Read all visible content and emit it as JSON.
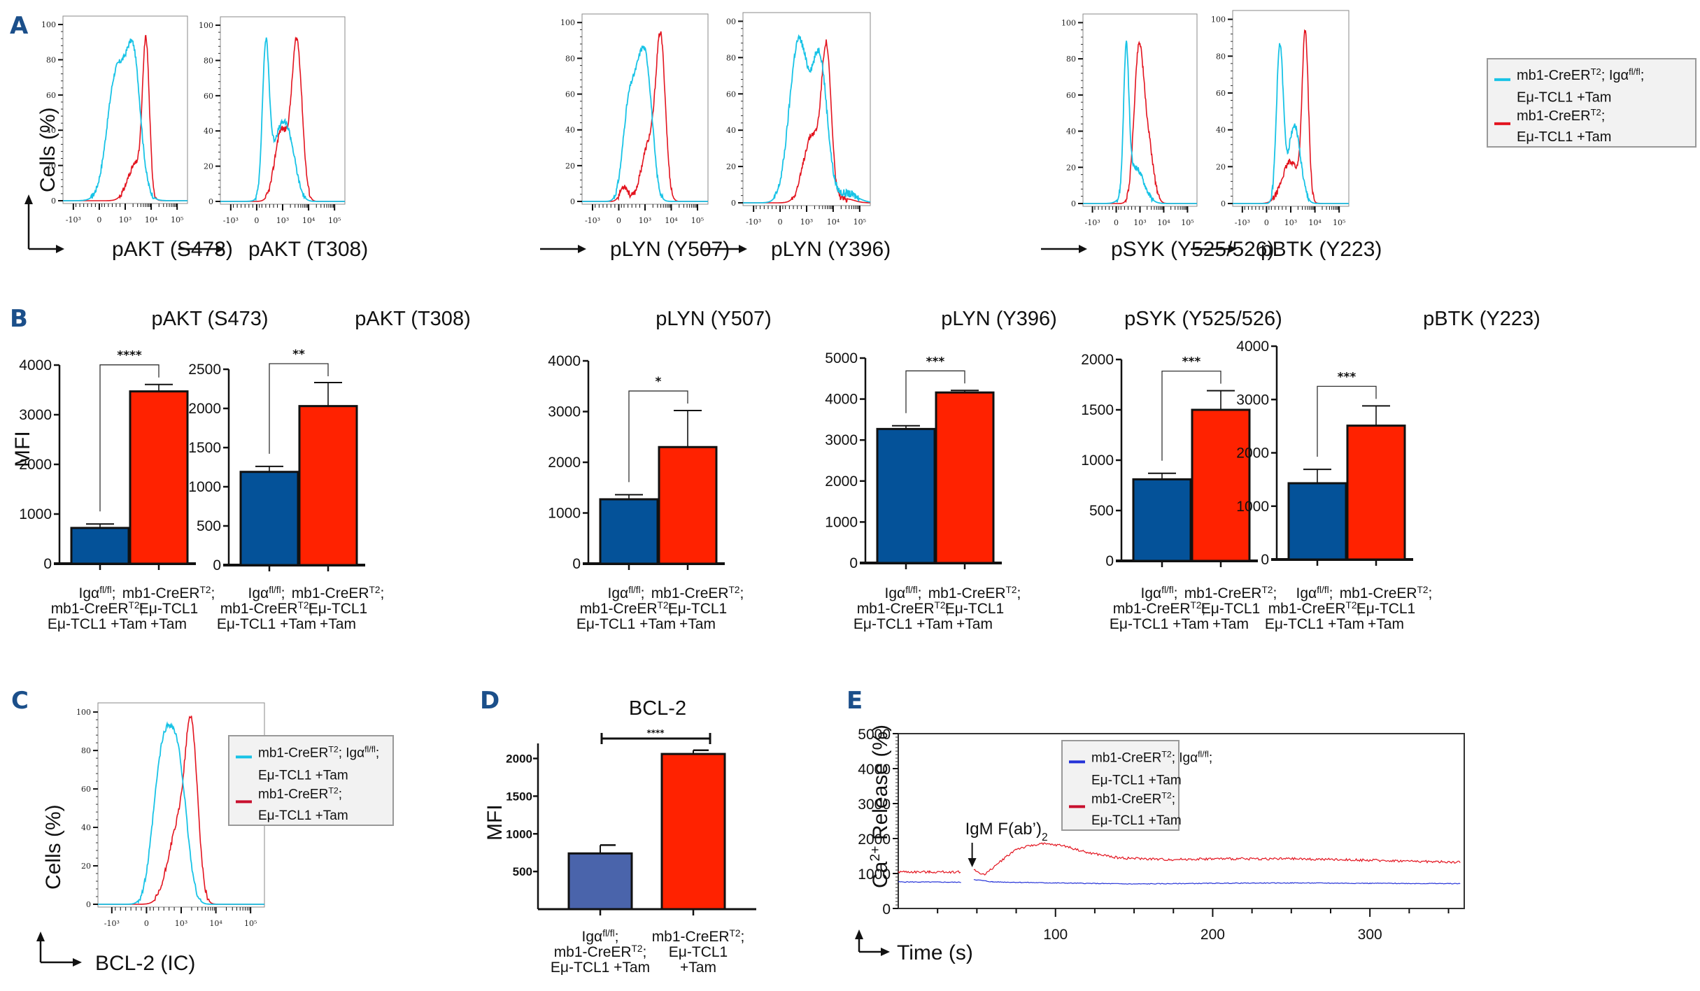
{
  "colors": {
    "panel_letter": "#1b4f8a",
    "cyan": "#18c3e6",
    "red_line": "#e3141f",
    "bar_blue": "#045299",
    "bar_red": "#ff2200",
    "bar_blue_d": "#4a64ab",
    "line_blue": "#2432d8",
    "legend_bg": "#f2f2f2"
  },
  "legend": {
    "series1_line1": "mb1-CreER",
    "series1_sup1": "T2",
    "series1_mid": "; Igα",
    "series1_sup2": "fl/fl",
    "series1_end": ";",
    "series1_line2": "Eμ-TCL1 +Tam",
    "series2_line1": "mb1-CreER",
    "series2_sup": "T2",
    "series2_end": ";",
    "series2_line2": "Eμ-TCL1 +Tam"
  },
  "categories": {
    "cat1_line1_a": "Igα",
    "cat1_line1_sup": "fl/fl",
    "cat1_line1_b": ";",
    "cat1_line2_a": "mb1-CreER",
    "cat1_line2_sup": "T2",
    "cat1_line2_b": ";",
    "cat1_line3": "Eμ-TCL1 +Tam",
    "cat2_line1_a": "mb1-CreER",
    "cat2_line1_sup": "T2",
    "cat2_line1_b": ";",
    "cat2_line2": "Eμ-TCL1",
    "cat2_line3": "+Tam"
  },
  "chart_data": [
    {
      "panel": "A",
      "type": "line",
      "subtype": "flow-cytometry-histograms",
      "ylabel": "Cells (%)",
      "ylim": [
        0,
        100
      ],
      "yticks": [
        "0",
        "20",
        "40",
        "60",
        "80",
        "100"
      ],
      "xticks": [
        "-10³",
        "0",
        "10³",
        "10⁴",
        "10⁵"
      ],
      "legend_position": "right",
      "series_names": [
        "mb1-CreERT2; Igαfl/fl; Eμ-TCL1 +Tam",
        "mb1-CreERT2; Eμ-TCL1 +Tam"
      ],
      "plots": [
        {
          "xlabel": "pAKT (S473)",
          "cyan_peak": {
            "x": "~3×10³",
            "y": 92
          },
          "red_peak": {
            "x": "~7×10³",
            "y": 94
          }
        },
        {
          "xlabel": "pAKT (T308)",
          "cyan_peak": {
            "x": "~3×10²",
            "y": 93
          },
          "red_peak": {
            "x": "~3×10³",
            "y": 93
          }
        },
        {
          "xlabel": "pLYN (Y507)",
          "cyan_peak": {
            "x": "~10³",
            "y": 87
          },
          "red_peak": {
            "x": "~4×10³",
            "y": 95
          }
        },
        {
          "xlabel": "pLYN (Y396)",
          "cyan_peak": {
            "x": "~4×10³",
            "y": 92
          },
          "red_peak": {
            "x": "~6×10³",
            "y": 90
          },
          "yticks_visible": [
            "0",
            "20",
            "40",
            "60",
            "80",
            "00"
          ]
        },
        {
          "xlabel": "pSYK (Y525/526)",
          "cyan_peak": {
            "x": "~5×10²",
            "y": 90
          },
          "red_peak": {
            "x": "~10³",
            "y": 89
          }
        },
        {
          "xlabel": "pBTK (Y223)",
          "cyan_peak": {
            "x": "~6×10²",
            "y": 87
          },
          "red_peak": {
            "x": "~3×10³",
            "y": 94
          }
        }
      ]
    },
    {
      "panel": "B",
      "type": "bar",
      "ylabel": "MFI",
      "categories": [
        "Igαfl/fl; mb1-CreERT2; Eμ-TCL1 +Tam",
        "mb1-CreERT2; Eμ-TCL1 +Tam"
      ],
      "plots": [
        {
          "title": "pAKT (S473)",
          "ylim": [
            0,
            4000
          ],
          "yticks": [
            0,
            1000,
            2000,
            3000,
            4000
          ],
          "values": [
            720,
            3470
          ],
          "errors": [
            80,
            140
          ],
          "significance": "****"
        },
        {
          "title": "pAKT (T308)",
          "ylim": [
            0,
            2500
          ],
          "yticks": [
            0,
            500,
            1000,
            1500,
            2000,
            2500
          ],
          "values": [
            1190,
            2030
          ],
          "errors": [
            70,
            300
          ],
          "significance": "**"
        },
        {
          "title": "pLYN (Y507)",
          "ylim": [
            0,
            4000
          ],
          "yticks": [
            0,
            1000,
            2000,
            3000,
            4000
          ],
          "values": [
            1270,
            2300
          ],
          "errors": [
            90,
            720
          ],
          "significance": "*"
        },
        {
          "title": "pLYN (Y396)",
          "ylim": [
            0,
            5000
          ],
          "yticks": [
            0,
            1000,
            2000,
            3000,
            4000,
            5000
          ],
          "values": [
            3270,
            4160
          ],
          "errors": [
            80,
            50
          ],
          "significance": "***"
        },
        {
          "title": "pSYK (Y525/526)",
          "ylim": [
            0,
            2000
          ],
          "yticks": [
            0,
            500,
            1000,
            1500,
            2000
          ],
          "values": [
            810,
            1500
          ],
          "errors": [
            60,
            190
          ],
          "significance": "***"
        },
        {
          "title": "pBTK (Y223)",
          "ylim": [
            0,
            4000
          ],
          "yticks": [
            0,
            1000,
            2000,
            3000,
            4000
          ],
          "values": [
            1430,
            2510
          ],
          "errors": [
            260,
            370
          ],
          "significance": "***"
        }
      ]
    },
    {
      "panel": "C",
      "type": "line",
      "subtype": "flow-cytometry-histogram",
      "xlabel": "BCL-2 (IC)",
      "ylabel": "Cells (%)",
      "ylim": [
        0,
        100
      ],
      "yticks": [
        "0",
        "20",
        "40",
        "60",
        "80",
        "100"
      ],
      "xticks": [
        "-10³",
        "0",
        "10³",
        "10⁴",
        "10⁵"
      ],
      "cyan_peak": {
        "x": "~6×10²",
        "y": 94
      },
      "red_peak": {
        "x": "~1.5×10³",
        "y": 98
      },
      "legend_position": "right"
    },
    {
      "panel": "D",
      "type": "bar",
      "title": "BCL-2",
      "ylabel": "MFI",
      "yticks": [
        500,
        1000,
        1500,
        2000
      ],
      "ylim": [
        0,
        2200
      ],
      "values": [
        740,
        2060
      ],
      "errors": [
        110,
        50
      ],
      "significance": "****"
    },
    {
      "panel": "E",
      "type": "line",
      "xlabel": "Time (s)",
      "ylabel": "Ca²⁺ Release (%)",
      "xlim": [
        0,
        360
      ],
      "ylim": [
        0,
        5000
      ],
      "xticks": [
        100,
        200,
        300
      ],
      "yticks": [
        0,
        1000,
        2000,
        3000,
        4000,
        5000
      ],
      "annotation": {
        "text": "IgM F(ab’)",
        "subscript": "2",
        "x": 47
      },
      "legend_position": "top-right",
      "series": [
        {
          "name": "mb1-CreERT2; Igαfl/fl; Eμ-TCL1 +Tam",
          "color": "blue",
          "points": [
            [
              0,
              760
            ],
            [
              40,
              750
            ],
            [
              47,
              null
            ],
            [
              48,
              830
            ],
            [
              60,
              760
            ],
            [
              100,
              730
            ],
            [
              150,
              700
            ],
            [
              200,
              720
            ],
            [
              250,
              730
            ],
            [
              300,
              720
            ],
            [
              358,
              710
            ]
          ]
        },
        {
          "name": "mb1-CreERT2; Eμ-TCL1 +Tam",
          "color": "red",
          "points": [
            [
              0,
              1050
            ],
            [
              20,
              1040
            ],
            [
              40,
              1050
            ],
            [
              41,
              null
            ],
            [
              48,
              1100
            ],
            [
              55,
              960
            ],
            [
              65,
              1350
            ],
            [
              75,
              1700
            ],
            [
              90,
              1850
            ],
            [
              105,
              1800
            ],
            [
              120,
              1600
            ],
            [
              140,
              1450
            ],
            [
              170,
              1400
            ],
            [
              200,
              1420
            ],
            [
              250,
              1420
            ],
            [
              300,
              1380
            ],
            [
              358,
              1320
            ]
          ]
        }
      ]
    }
  ],
  "labels": {
    "A": "A",
    "B": "B",
    "C": "C",
    "D": "D",
    "E": "E",
    "cells_pct": "Cells (%)",
    "mfi": "MFI",
    "ca_release_a": "Ca",
    "ca_release_sup": "2+",
    "ca_release_b": " Release (%)",
    "time": "Time (s)",
    "bcl2_ic": "BCL-2 (IC)",
    "bcl2": "BCL-2",
    "igm_a": "IgM F(ab’)",
    "igm_sub": "2"
  }
}
